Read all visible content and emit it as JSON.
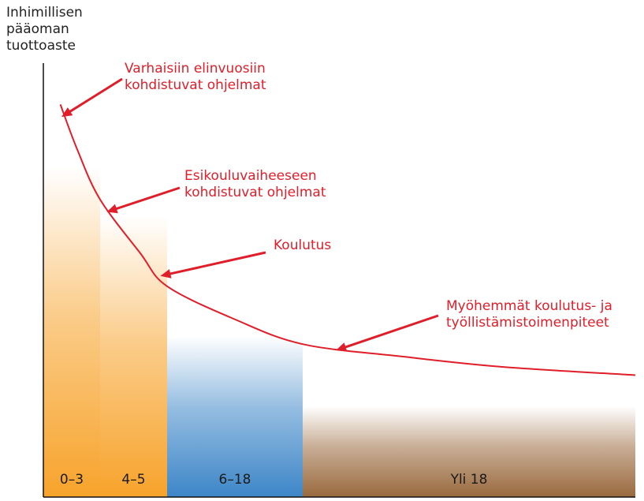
{
  "chart_data": {
    "type": "bar",
    "ylabel_lines": [
      "Inhimillisen",
      "pääoman",
      "tuottoaste"
    ],
    "xlabel": "",
    "categories": [
      "0–3",
      "4–5",
      "6–18",
      "Yli 18"
    ],
    "values": [
      8.0,
      6.8,
      3.9,
      2.2
    ],
    "ylim": [
      0,
      10.5
    ],
    "grid": false,
    "bar_colors": [
      "#f7a32b",
      "#f7a32b",
      "#3d86c8",
      "#9a6a3e"
    ],
    "curve": {
      "color": "#e01e2a",
      "points": [
        {
          "x": 0.3,
          "y": 9.5
        },
        {
          "x": 0.6,
          "y": 8.4
        },
        {
          "x": 1.0,
          "y": 7.2
        },
        {
          "x": 1.6,
          "y": 5.9
        },
        {
          "x": 2.0,
          "y": 5.1
        },
        {
          "x": 2.5,
          "y": 4.3
        },
        {
          "x": 3.0,
          "y": 3.7
        },
        {
          "x": 3.3,
          "y": 3.4
        },
        {
          "x": 3.6,
          "y": 3.15
        },
        {
          "x": 4.0,
          "y": 2.95
        }
      ]
    },
    "annotations": [
      {
        "lines": [
          "Varhaisiin elinvuosiin",
          "kohdistuvat ohjelmat"
        ],
        "target_x": 0.32,
        "target_y": 9.2
      },
      {
        "lines": [
          "Esikouluvaiheeseen",
          "kohdistuvat ohjelmat"
        ],
        "target_x": 1.1,
        "target_y": 6.9
      },
      {
        "lines": [
          "Koulutus"
        ],
        "target_x": 1.9,
        "target_y": 5.35
      },
      {
        "lines": [
          "Myöhemmät koulutus- ja",
          "työllistämistoimenpiteet"
        ],
        "target_x": 3.1,
        "target_y": 3.55
      }
    ],
    "annotation_color": "#e01e2a"
  }
}
